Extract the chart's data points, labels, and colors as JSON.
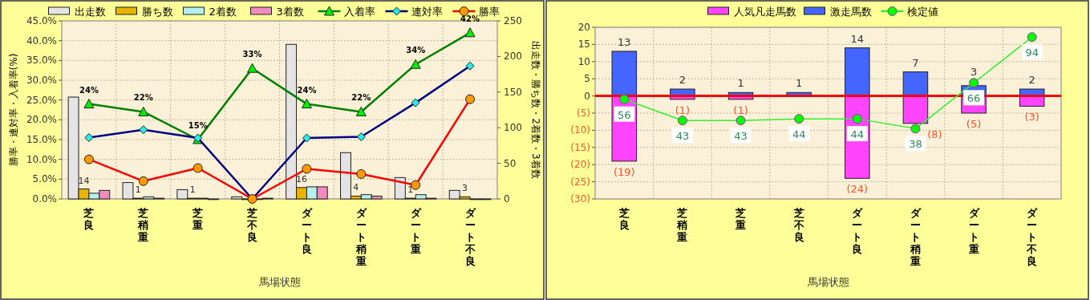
{
  "chart_data": [
    {
      "type": "bar",
      "categories": [
        "芝良",
        "芝稍重",
        "芝重",
        "芝不良",
        "ダート良",
        "ダート稍重",
        "ダート重",
        "ダート不良"
      ],
      "xlabel": "馬場状態",
      "ylabel": "勝率・連対率・入着率(%)",
      "y2label": "出走数・勝ち数・2着数・3着数",
      "ylim": [
        0,
        45
      ],
      "yticks": [
        {
          "value": 0,
          "label": "0.0%"
        },
        {
          "value": 5,
          "label": "5.0%"
        },
        {
          "value": 10,
          "label": "10.0%"
        },
        {
          "value": 15,
          "label": "15.0%"
        },
        {
          "value": 20,
          "label": "20.0%"
        },
        {
          "value": 25,
          "label": "25.0%"
        },
        {
          "value": 30,
          "label": "30.0%"
        },
        {
          "value": 35,
          "label": "35.0%"
        },
        {
          "value": 40,
          "label": "40.0%"
        },
        {
          "value": 45,
          "label": "45.0%"
        }
      ],
      "y2lim": [
        0,
        250
      ],
      "y2ticks": [
        0,
        50,
        100,
        150,
        200,
        250
      ],
      "grid": true,
      "legend": "top",
      "series": [
        {
          "name": "出走数",
          "axis": "y2",
          "color": "#e4e4e4",
          "values": [
            143,
            23,
            13,
            3,
            217,
            65,
            30,
            12
          ]
        },
        {
          "name": "勝ち数",
          "axis": "y2",
          "color": "#e8b400",
          "values": [
            14,
            1,
            1,
            0,
            16,
            4,
            1,
            3
          ],
          "value_labels": [
            "14",
            "1",
            "1",
            null,
            "16",
            "4",
            "1",
            "3"
          ]
        },
        {
          "name": "2着数",
          "axis": "y2",
          "color": "#b4f0f0",
          "values": [
            8,
            3,
            1,
            0,
            17,
            6,
            6,
            0
          ]
        },
        {
          "name": "3着数",
          "axis": "y2",
          "color": "#f08cc0",
          "values": [
            12,
            1,
            0,
            1,
            17,
            4,
            1,
            0
          ]
        },
        {
          "name": "入着率",
          "type": "line",
          "marker": "triangle",
          "color": "#008000",
          "values": [
            24,
            22,
            15,
            33,
            24,
            22,
            34,
            42
          ],
          "value_labels": [
            "24%",
            "22%",
            "15%",
            "33%",
            "24%",
            "22%",
            "34%",
            "42%"
          ]
        },
        {
          "name": "連対率",
          "type": "line",
          "marker": "diamond",
          "color": "#000080",
          "values": [
            15.5,
            17.5,
            15.4,
            0,
            15.4,
            15.7,
            24.3,
            33.6
          ]
        },
        {
          "name": "勝率",
          "type": "line",
          "marker": "circle",
          "color": "#ff0000",
          "values": [
            10.0,
            4.5,
            7.8,
            0,
            7.6,
            6.3,
            3.5,
            25.2
          ]
        }
      ]
    },
    {
      "type": "bar",
      "stacked": true,
      "categories": [
        "芝良",
        "芝稍重",
        "芝重",
        "芝不良",
        "ダート良",
        "ダート稍重",
        "ダート重",
        "ダート不良"
      ],
      "xlabel": "馬場状態",
      "ylim": [
        -30,
        20
      ],
      "yticks": [
        {
          "value": -30,
          "label": "(30)"
        },
        {
          "value": -25,
          "label": "(25)"
        },
        {
          "value": -20,
          "label": "(20)"
        },
        {
          "value": -15,
          "label": "(15)"
        },
        {
          "value": -10,
          "label": "(10)"
        },
        {
          "value": -5,
          "label": "(5)"
        },
        0,
        5,
        10,
        15,
        20
      ],
      "y2lim": [
        -5,
        100
      ],
      "grid": true,
      "legend": "top",
      "ref_lines": [
        {
          "axis": "y",
          "value": 0,
          "color": "#ff0000"
        }
      ],
      "series": [
        {
          "name": "人気凡走馬数",
          "color": "#ff44ff",
          "values": [
            -19,
            -1,
            -1,
            0,
            -24,
            -8,
            -5,
            -3
          ],
          "value_labels": [
            "(19)",
            "(1)",
            "(1)",
            null,
            "(24)",
            "(8)",
            "(5)",
            "(3)"
          ]
        },
        {
          "name": "激走馬数",
          "color": "#4466ff",
          "values": [
            13,
            2,
            1,
            1,
            14,
            7,
            3,
            2
          ],
          "value_labels": [
            "13",
            "2",
            "1",
            "1",
            "14",
            "7",
            "3",
            "2"
          ]
        },
        {
          "name": "検定値",
          "type": "line",
          "axis": "y2",
          "marker": "circle",
          "color": "#33ee33",
          "values": [
            56,
            43,
            43,
            44,
            44,
            38,
            66,
            94
          ],
          "value_labels": [
            "56",
            "43",
            "43",
            "44",
            "44",
            "38",
            "66",
            "94"
          ]
        }
      ]
    }
  ]
}
